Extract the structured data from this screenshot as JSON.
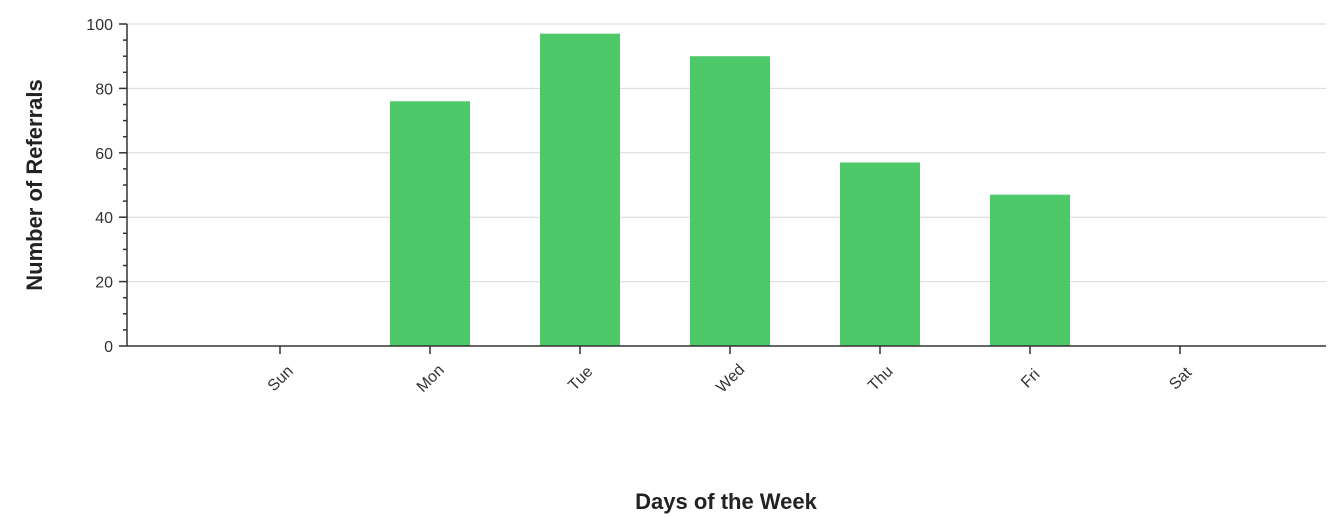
{
  "chart_data": {
    "type": "bar",
    "title": "",
    "xlabel": "Days of the Week",
    "ylabel": "Number of Referrals",
    "categories": [
      "Sun",
      "Mon",
      "Tue",
      "Wed",
      "Thu",
      "Fri",
      "Sat"
    ],
    "values": [
      0,
      76,
      97,
      90,
      57,
      47,
      0
    ],
    "ylim": [
      0,
      100
    ],
    "yticks": [
      0,
      20,
      40,
      60,
      80,
      100
    ],
    "ytick_labels": [
      "0",
      "20",
      "40",
      "60",
      "80",
      "100"
    ],
    "grid": "horizontal",
    "legend": "none",
    "bar_color": "#4ec96a",
    "tick_label_rotation": "diagonal"
  }
}
